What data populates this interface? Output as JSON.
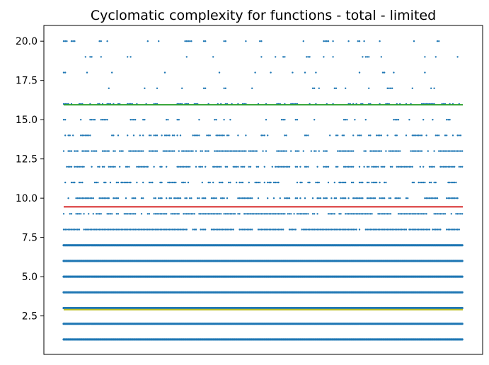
{
  "chart_data": {
    "type": "scatter",
    "title": "Cyclomatic complexity for functions - total - limited",
    "xlabel": "",
    "ylabel": "",
    "x_ticks_visible": false,
    "ylim": [
      0.05,
      21.0
    ],
    "yticks": [
      2.5,
      5.0,
      7.5,
      10.0,
      12.5,
      15.0,
      17.5,
      20.0
    ],
    "ytick_labels": [
      "2.5",
      "5.0",
      "7.5",
      "10.0",
      "12.5",
      "15.0",
      "17.5",
      "20.0"
    ],
    "grid": false,
    "legend": "none",
    "point_color": "#1f77b4",
    "series": [
      {
        "y": 1,
        "density": 1.0
      },
      {
        "y": 2,
        "density": 1.0
      },
      {
        "y": 3,
        "density": 1.0
      },
      {
        "y": 4,
        "density": 1.0
      },
      {
        "y": 5,
        "density": 1.0
      },
      {
        "y": 6,
        "density": 1.0
      },
      {
        "y": 7,
        "density": 1.0
      },
      {
        "y": 8,
        "density": 0.95
      },
      {
        "y": 9,
        "density": 0.85
      },
      {
        "y": 10,
        "density": 0.7
      },
      {
        "y": 11,
        "density": 0.6
      },
      {
        "y": 12,
        "density": 0.7
      },
      {
        "y": 13,
        "density": 0.75
      },
      {
        "y": 14,
        "density": 0.5
      },
      {
        "y": 15,
        "density": 0.45
      },
      {
        "y": 16,
        "density": 0.55
      },
      {
        "y": 17,
        "density": 0.35
      },
      {
        "y": 18,
        "density": 0.3
      },
      {
        "y": 19,
        "density": 0.35
      },
      {
        "y": 20,
        "density": 0.45
      }
    ],
    "reference_lines": [
      {
        "y": 2.9,
        "color": "#bcbd22"
      },
      {
        "y": 9.45,
        "color": "#d62728"
      },
      {
        "y": 15.95,
        "color": "#2ca02c"
      }
    ]
  }
}
